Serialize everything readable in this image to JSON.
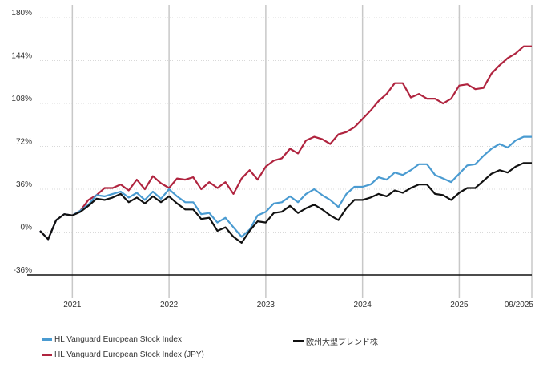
{
  "chart_data": {
    "type": "line",
    "title": "",
    "xlabel": "",
    "ylabel": "",
    "ylim": [
      -36,
      180
    ],
    "yticks": [
      "180%",
      "144%",
      "108%",
      "72%",
      "36%",
      "0%",
      "-36%"
    ],
    "ytick_values": [
      180,
      144,
      108,
      72,
      36,
      0,
      -36
    ],
    "xticks": [
      "2021",
      "2022",
      "2023",
      "2024",
      "2025",
      "09/2025"
    ],
    "xtick_values": [
      2020.917,
      2021.917,
      2022.917,
      2023.917,
      2024.917,
      2025.667
    ],
    "xlim": [
      2020.583,
      2025.667
    ],
    "grid": true,
    "legend_placement": "bottom",
    "series": [
      {
        "name": "HL Vanguard European Stock Index",
        "color": "#4a9bd1",
        "x": [
          2020.583,
          2020.667,
          2020.75,
          2020.833,
          2020.917,
          2021.0,
          2021.083,
          2021.167,
          2021.25,
          2021.333,
          2021.417,
          2021.5,
          2021.583,
          2021.667,
          2021.75,
          2021.833,
          2021.917,
          2022.0,
          2022.083,
          2022.167,
          2022.25,
          2022.333,
          2022.417,
          2022.5,
          2022.583,
          2022.667,
          2022.75,
          2022.833,
          2022.917,
          2023.0,
          2023.083,
          2023.167,
          2023.25,
          2023.333,
          2023.417,
          2023.5,
          2023.583,
          2023.667,
          2023.75,
          2023.833,
          2023.917,
          2024.0,
          2024.083,
          2024.167,
          2024.25,
          2024.333,
          2024.417,
          2024.5,
          2024.583,
          2024.667,
          2024.75,
          2024.833,
          2024.917,
          2025.0,
          2025.083,
          2025.167,
          2025.25,
          2025.333,
          2025.417,
          2025.5,
          2025.583,
          2025.667
        ],
        "values": [
          1,
          -6,
          10,
          15,
          14,
          18,
          23,
          31,
          30,
          32,
          34,
          29,
          33,
          27,
          34,
          28,
          36,
          30,
          25,
          25,
          15,
          16,
          8,
          12,
          4,
          -4,
          2,
          14,
          17,
          24,
          25,
          30,
          25,
          32,
          36,
          31,
          27,
          21,
          32,
          38,
          38,
          40,
          46,
          44,
          50,
          48,
          52,
          57,
          57,
          48,
          45,
          42,
          49,
          56,
          57,
          64,
          70,
          74,
          71,
          77,
          80,
          80
        ]
      },
      {
        "name": "HL Vanguard European Stock Index (JPY)",
        "color": "#b0243f",
        "x": [
          2020.583,
          2020.667,
          2020.75,
          2020.833,
          2020.917,
          2021.0,
          2021.083,
          2021.167,
          2021.25,
          2021.333,
          2021.417,
          2021.5,
          2021.583,
          2021.667,
          2021.75,
          2021.833,
          2021.917,
          2022.0,
          2022.083,
          2022.167,
          2022.25,
          2022.333,
          2022.417,
          2022.5,
          2022.583,
          2022.667,
          2022.75,
          2022.833,
          2022.917,
          2023.0,
          2023.083,
          2023.167,
          2023.25,
          2023.333,
          2023.417,
          2023.5,
          2023.583,
          2023.667,
          2023.75,
          2023.833,
          2023.917,
          2024.0,
          2024.083,
          2024.167,
          2024.25,
          2024.333,
          2024.417,
          2024.5,
          2024.583,
          2024.667,
          2024.75,
          2024.833,
          2024.917,
          2025.0,
          2025.083,
          2025.167,
          2025.25,
          2025.333,
          2025.417,
          2025.5,
          2025.583,
          2025.667
        ],
        "values": [
          1,
          -6,
          10,
          15,
          14,
          18,
          27,
          31,
          37,
          37,
          40,
          35,
          44,
          36,
          47,
          41,
          37,
          45,
          44,
          46,
          36,
          42,
          37,
          42,
          32,
          45,
          52,
          44,
          55,
          60,
          62,
          70,
          66,
          77,
          80,
          78,
          74,
          82,
          84,
          88,
          95,
          102,
          110,
          116,
          125,
          125,
          113,
          116,
          112,
          112,
          108,
          112,
          123,
          124,
          120,
          121,
          133,
          140,
          146,
          150,
          156,
          156
        ]
      },
      {
        "name": "欧州大型ブレンド株",
        "color": "#111111",
        "x": [
          2020.583,
          2020.667,
          2020.75,
          2020.833,
          2020.917,
          2021.0,
          2021.083,
          2021.167,
          2021.25,
          2021.333,
          2021.417,
          2021.5,
          2021.583,
          2021.667,
          2021.75,
          2021.833,
          2021.917,
          2022.0,
          2022.083,
          2022.167,
          2022.25,
          2022.333,
          2022.417,
          2022.5,
          2022.583,
          2022.667,
          2022.75,
          2022.833,
          2022.917,
          2023.0,
          2023.083,
          2023.167,
          2023.25,
          2023.333,
          2023.417,
          2023.5,
          2023.583,
          2023.667,
          2023.75,
          2023.833,
          2023.917,
          2024.0,
          2024.083,
          2024.167,
          2024.25,
          2024.333,
          2024.417,
          2024.5,
          2024.583,
          2024.667,
          2024.75,
          2024.833,
          2024.917,
          2025.0,
          2025.083,
          2025.167,
          2025.25,
          2025.333,
          2025.417,
          2025.5,
          2025.583,
          2025.667
        ],
        "values": [
          1,
          -6,
          10,
          15,
          14,
          17,
          22,
          28,
          27,
          29,
          32,
          25,
          29,
          24,
          30,
          25,
          30,
          24,
          19,
          19,
          11,
          12,
          1,
          4,
          -4,
          -9,
          1,
          9,
          8,
          16,
          17,
          22,
          16,
          20,
          23,
          19,
          14,
          10,
          20,
          27,
          27,
          29,
          32,
          30,
          35,
          33,
          37,
          40,
          40,
          32,
          31,
          27,
          33,
          37,
          37,
          43,
          49,
          52,
          50,
          55,
          58,
          58
        ]
      }
    ]
  }
}
